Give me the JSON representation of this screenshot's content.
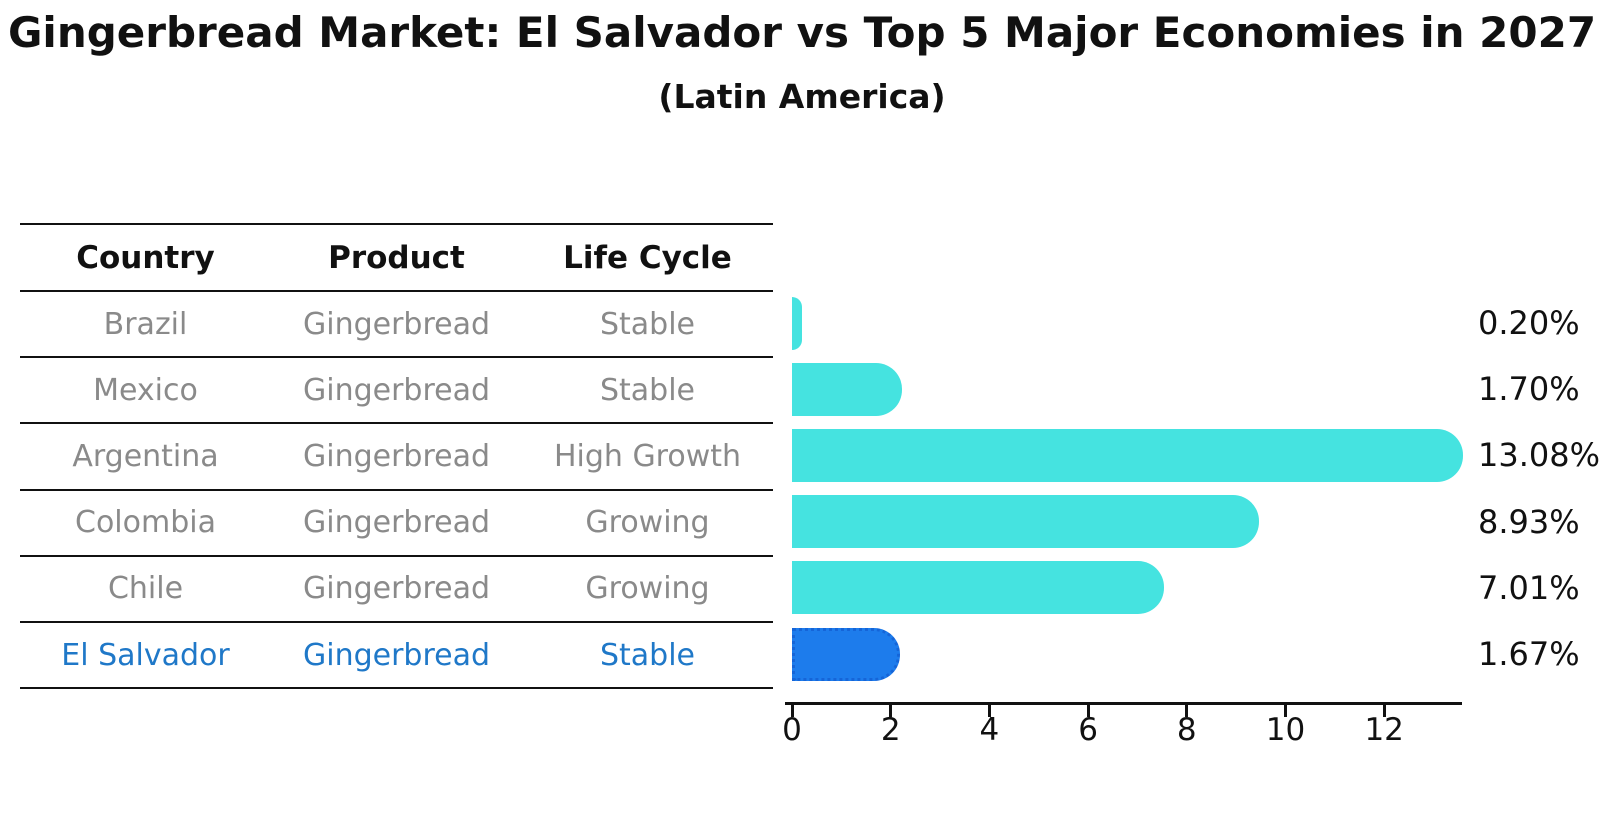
{
  "header": {
    "title": "Gingerbread Market: El Salvador vs Top 5 Major Economies in 2027",
    "subtitle": "(Latin America)"
  },
  "table": {
    "headers": [
      "Country",
      "Product",
      "Life Cycle"
    ],
    "rows": [
      {
        "country": "Brazil",
        "product": "Gingerbread",
        "life_cycle": "Stable",
        "highlight": false
      },
      {
        "country": "Mexico",
        "product": "Gingerbread",
        "life_cycle": "Stable",
        "highlight": false
      },
      {
        "country": "Argentina",
        "product": "Gingerbread",
        "life_cycle": "High Growth",
        "highlight": false
      },
      {
        "country": "Colombia",
        "product": "Gingerbread",
        "life_cycle": "Growing",
        "highlight": false
      },
      {
        "country": "Chile",
        "product": "Gingerbread",
        "life_cycle": "Growing",
        "highlight": false
      },
      {
        "country": "El Salvador",
        "product": "Gingerbread",
        "life_cycle": "Stable",
        "highlight": true
      }
    ]
  },
  "chart_data": {
    "type": "bar",
    "orientation": "horizontal",
    "title": "Gingerbread Market: El Salvador vs Top 5 Major Economies in 2027",
    "subtitle": "(Latin America)",
    "categories": [
      "Brazil",
      "Mexico",
      "Argentina",
      "Colombia",
      "Chile",
      "El Salvador"
    ],
    "values": [
      0.2,
      1.7,
      13.08,
      8.93,
      7.01,
      1.67
    ],
    "value_labels": [
      "0.20%",
      "1.70%",
      "13.08%",
      "8.93%",
      "7.01%",
      "1.67%"
    ],
    "x_ticks": [
      0,
      2,
      4,
      6,
      8,
      10,
      12
    ],
    "xlim": [
      0,
      13.6
    ],
    "grid": false,
    "legend": false,
    "highlight_category": "El Salvador",
    "colors": {
      "bar": "#45e3e0",
      "highlight_bar": "#1d7cec",
      "highlight_bar_border": "#1565d8",
      "highlight_text": "#1f78c8",
      "row_text": "#8a8a8a",
      "header_text": "#111111",
      "axis": "#111111"
    }
  }
}
